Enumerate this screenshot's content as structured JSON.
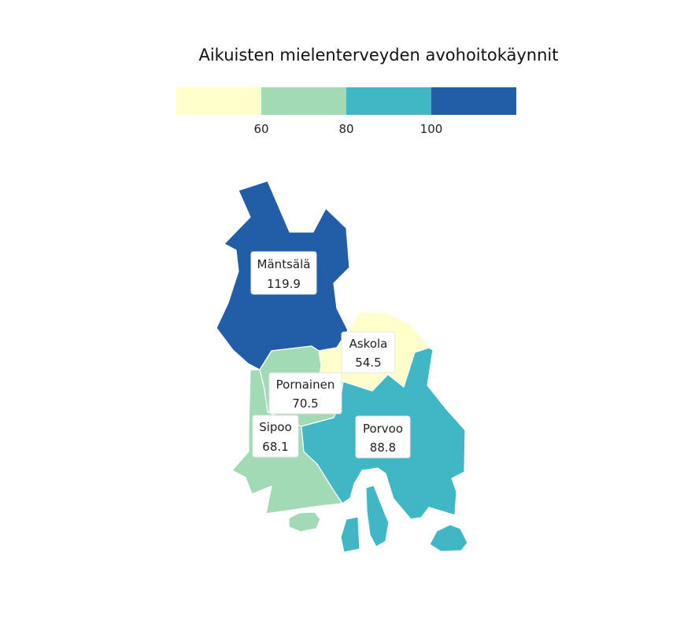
{
  "map": {
    "title": "Aikuisten mielenterveyden avohoitokäynnit",
    "legend": {
      "colors": [
        "#ffffcc",
        "#a1dab4",
        "#41b6c4",
        "#225ea8"
      ],
      "breaks": [
        "60",
        "80",
        "100"
      ]
    },
    "municipalities": [
      {
        "id": "mantsala",
        "name": "Mäntsälä",
        "value": "119.9",
        "color": "#225ea8"
      },
      {
        "id": "askola",
        "name": "Askola",
        "value": "54.5",
        "color": "#ffffcc"
      },
      {
        "id": "pornainen",
        "name": "Pornainen",
        "value": "70.5",
        "color": "#a1dab4"
      },
      {
        "id": "sipoo",
        "name": "Sipoo",
        "value": "68.1",
        "color": "#a1dab4"
      },
      {
        "id": "porvoo",
        "name": "Porvoo",
        "value": "88.8",
        "color": "#41b6c4"
      }
    ]
  }
}
